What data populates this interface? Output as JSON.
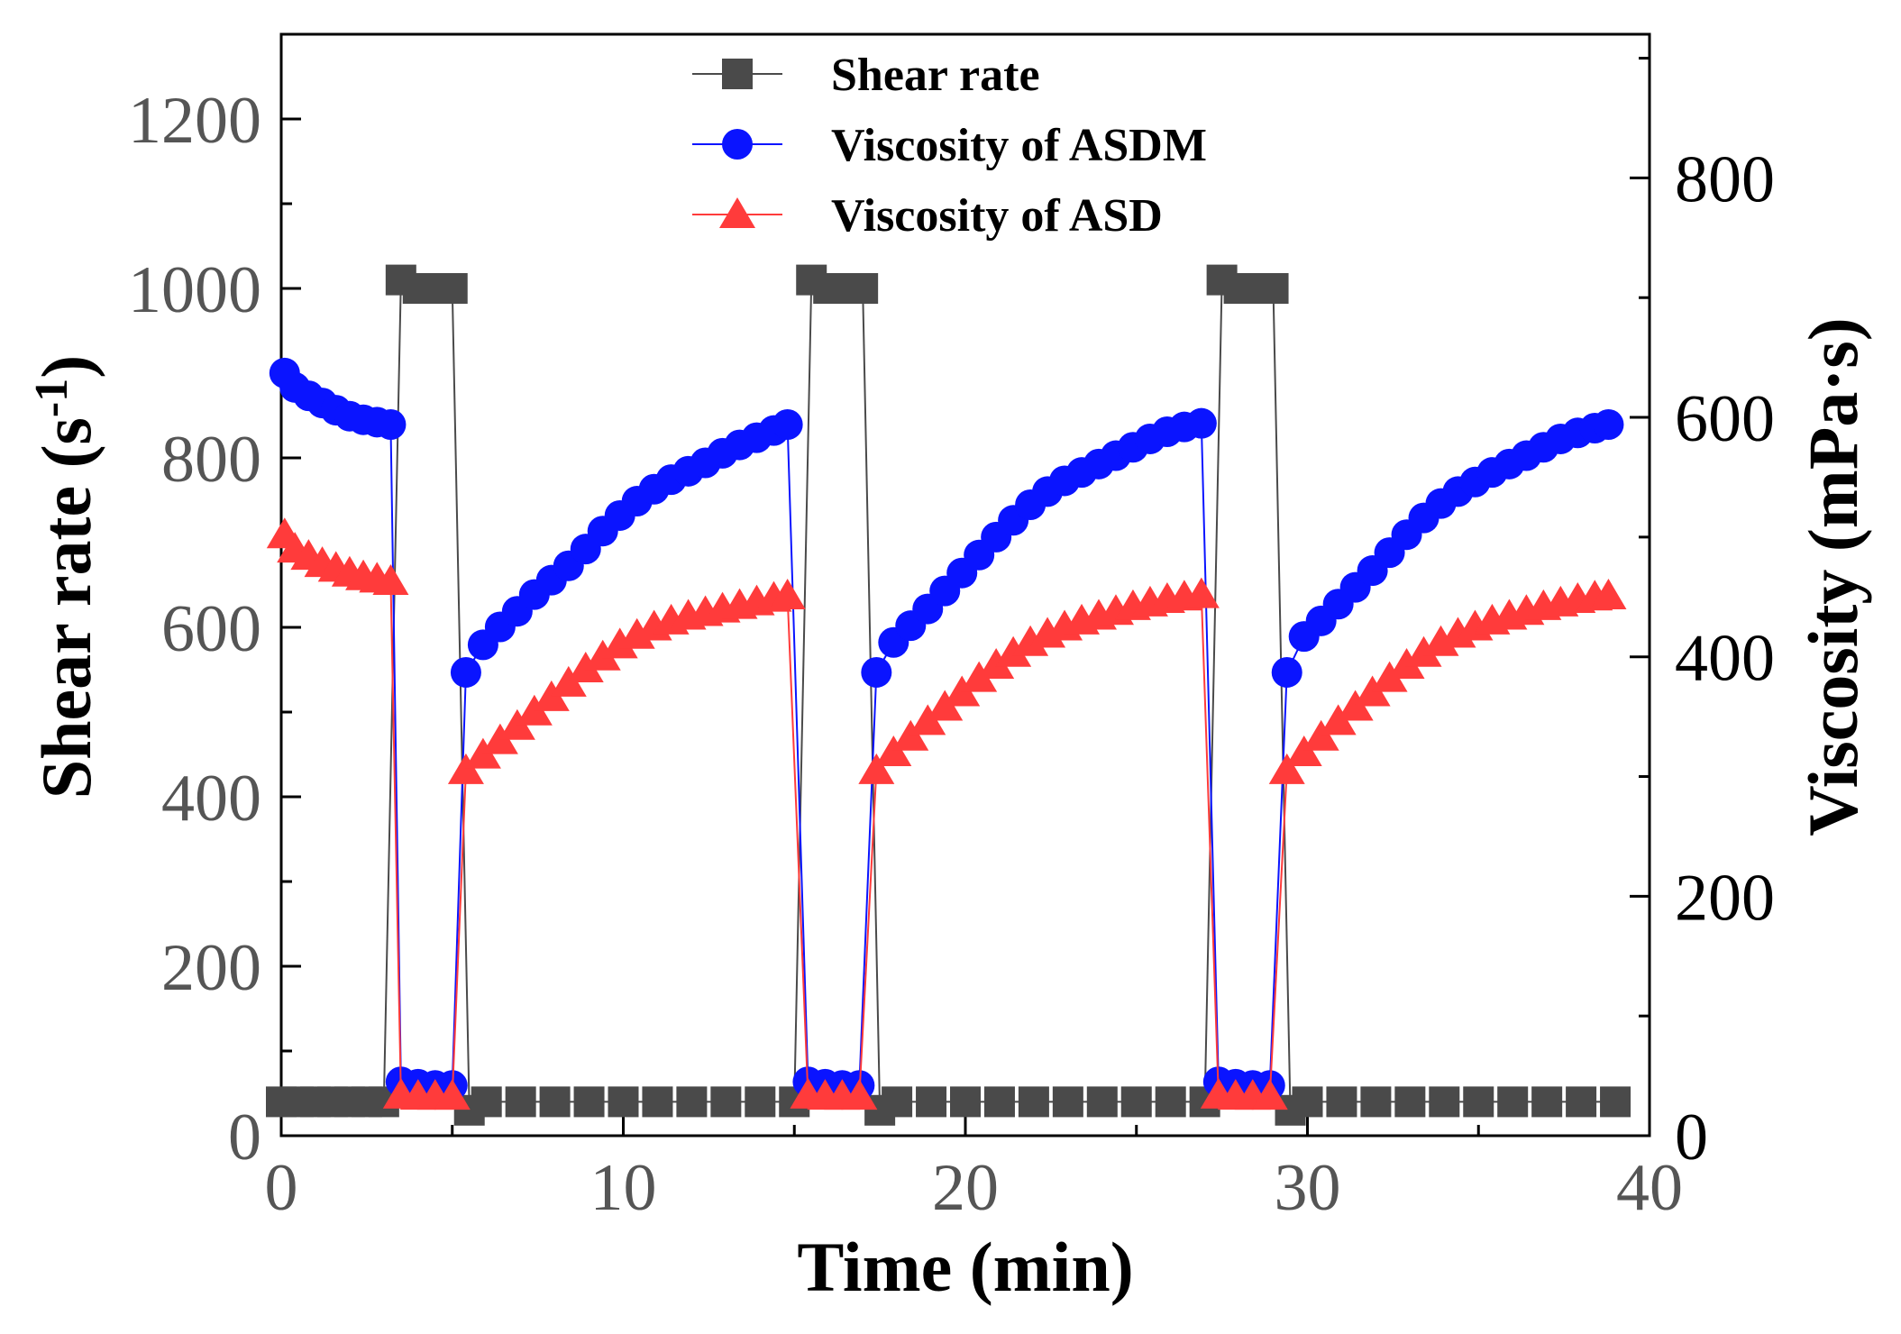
{
  "chart_data": {
    "type": "line",
    "title": "",
    "xlabel": "Time (min)",
    "ylabel_left_main": "Shear rate (s",
    "ylabel_left_sup": "-1",
    "ylabel_left_close": ")",
    "ylabel_right": "Viscosity (mPa·s)",
    "xlim": [
      0,
      40
    ],
    "ylim_left": [
      0,
      1300
    ],
    "ylim_right": [
      0,
      920
    ],
    "x_ticks": [
      "0",
      "10",
      "20",
      "30",
      "40"
    ],
    "y_left_ticks": [
      "0",
      "200",
      "400",
      "600",
      "800",
      "1000",
      "1200"
    ],
    "y_right_ticks": [
      "0",
      "200",
      "400",
      "600",
      "800"
    ],
    "legend_position": "top-center",
    "series": [
      {
        "name": "Shear rate",
        "axis": "left",
        "marker": "square",
        "color": "#4a4a4a",
        "points": [
          [
            0,
            40
          ],
          [
            0.5,
            40
          ],
          [
            1,
            40
          ],
          [
            1.5,
            40
          ],
          [
            2,
            40
          ],
          [
            2.5,
            40
          ],
          [
            3,
            40
          ],
          [
            3.5,
            1010
          ],
          [
            4,
            1000
          ],
          [
            4.5,
            1000
          ],
          [
            5,
            1000
          ],
          [
            5.5,
            30
          ],
          [
            6,
            40
          ],
          [
            7,
            40
          ],
          [
            8,
            40
          ],
          [
            9,
            40
          ],
          [
            10,
            40
          ],
          [
            11,
            40
          ],
          [
            12,
            40
          ],
          [
            13,
            40
          ],
          [
            14,
            40
          ],
          [
            15,
            40
          ],
          [
            15.5,
            1010
          ],
          [
            16,
            1000
          ],
          [
            16.5,
            1000
          ],
          [
            17,
            1000
          ],
          [
            17.5,
            30
          ],
          [
            18,
            40
          ],
          [
            19,
            40
          ],
          [
            20,
            40
          ],
          [
            21,
            40
          ],
          [
            22,
            40
          ],
          [
            23,
            40
          ],
          [
            24,
            40
          ],
          [
            25,
            40
          ],
          [
            26,
            40
          ],
          [
            27,
            40
          ],
          [
            27.5,
            1010
          ],
          [
            28,
            1000
          ],
          [
            28.5,
            1000
          ],
          [
            29,
            1000
          ],
          [
            29.5,
            30
          ],
          [
            30,
            40
          ],
          [
            31,
            40
          ],
          [
            32,
            40
          ],
          [
            33,
            40
          ],
          [
            34,
            40
          ],
          [
            35,
            40
          ],
          [
            36,
            40
          ],
          [
            37,
            40
          ],
          [
            38,
            40
          ],
          [
            39,
            40
          ]
        ]
      },
      {
        "name": "Viscosity of ASDM",
        "axis": "right",
        "marker": "circle",
        "color": "#0a14ff",
        "points": [
          [
            0.1,
            637
          ],
          [
            0.4,
            625
          ],
          [
            0.8,
            618
          ],
          [
            1.2,
            612
          ],
          [
            1.6,
            606
          ],
          [
            2,
            601
          ],
          [
            2.4,
            598
          ],
          [
            2.8,
            596
          ],
          [
            3.2,
            594
          ],
          [
            3.5,
            45
          ],
          [
            4,
            43
          ],
          [
            4.5,
            42
          ],
          [
            5,
            42
          ],
          [
            5.4,
            387
          ],
          [
            5.9,
            410
          ],
          [
            6.4,
            425
          ],
          [
            6.9,
            438
          ],
          [
            7.4,
            452
          ],
          [
            7.9,
            464
          ],
          [
            8.4,
            476
          ],
          [
            8.9,
            490
          ],
          [
            9.4,
            505
          ],
          [
            9.9,
            518
          ],
          [
            10.4,
            530
          ],
          [
            10.9,
            540
          ],
          [
            11.4,
            548
          ],
          [
            11.9,
            555
          ],
          [
            12.4,
            562
          ],
          [
            12.9,
            570
          ],
          [
            13.4,
            577
          ],
          [
            13.9,
            583
          ],
          [
            14.4,
            589
          ],
          [
            14.8,
            594
          ],
          [
            15.4,
            45
          ],
          [
            15.9,
            43
          ],
          [
            16.4,
            42
          ],
          [
            16.9,
            42
          ],
          [
            17.4,
            387
          ],
          [
            17.9,
            412
          ],
          [
            18.4,
            426
          ],
          [
            18.9,
            440
          ],
          [
            19.4,
            455
          ],
          [
            19.9,
            470
          ],
          [
            20.4,
            485
          ],
          [
            20.9,
            500
          ],
          [
            21.4,
            514
          ],
          [
            21.9,
            527
          ],
          [
            22.4,
            538
          ],
          [
            22.9,
            547
          ],
          [
            23.4,
            554
          ],
          [
            23.9,
            561
          ],
          [
            24.4,
            568
          ],
          [
            24.9,
            575
          ],
          [
            25.4,
            582
          ],
          [
            25.9,
            588
          ],
          [
            26.4,
            592
          ],
          [
            26.9,
            595
          ],
          [
            27.4,
            45
          ],
          [
            27.9,
            43
          ],
          [
            28.4,
            42
          ],
          [
            28.9,
            42
          ],
          [
            29.4,
            387
          ],
          [
            29.9,
            417
          ],
          [
            30.4,
            430
          ],
          [
            30.9,
            444
          ],
          [
            31.4,
            458
          ],
          [
            31.9,
            472
          ],
          [
            32.4,
            487
          ],
          [
            32.9,
            502
          ],
          [
            33.4,
            516
          ],
          [
            33.9,
            528
          ],
          [
            34.4,
            538
          ],
          [
            34.9,
            546
          ],
          [
            35.4,
            554
          ],
          [
            35.9,
            561
          ],
          [
            36.4,
            568
          ],
          [
            36.9,
            575
          ],
          [
            37.4,
            582
          ],
          [
            37.9,
            587
          ],
          [
            38.4,
            591
          ],
          [
            38.8,
            594
          ]
        ]
      },
      {
        "name": "Viscosity of ASD",
        "axis": "right",
        "marker": "triangle",
        "color": "#ff3b3b",
        "points": [
          [
            0.1,
            502
          ],
          [
            0.4,
            490
          ],
          [
            0.8,
            484
          ],
          [
            1.2,
            478
          ],
          [
            1.6,
            474
          ],
          [
            2,
            470
          ],
          [
            2.4,
            467
          ],
          [
            2.8,
            465
          ],
          [
            3.2,
            463
          ],
          [
            3.5,
            34
          ],
          [
            4,
            33
          ],
          [
            4.5,
            33
          ],
          [
            5,
            33
          ],
          [
            5.4,
            305
          ],
          [
            5.9,
            318
          ],
          [
            6.4,
            330
          ],
          [
            6.9,
            342
          ],
          [
            7.4,
            354
          ],
          [
            7.9,
            366
          ],
          [
            8.4,
            378
          ],
          [
            8.9,
            390
          ],
          [
            9.4,
            400
          ],
          [
            9.9,
            410
          ],
          [
            10.4,
            418
          ],
          [
            10.9,
            425
          ],
          [
            11.4,
            430
          ],
          [
            11.9,
            434
          ],
          [
            12.4,
            437
          ],
          [
            12.9,
            440
          ],
          [
            13.4,
            443
          ],
          [
            13.9,
            446
          ],
          [
            14.4,
            449
          ],
          [
            14.8,
            451
          ],
          [
            15.4,
            34
          ],
          [
            15.9,
            33
          ],
          [
            16.4,
            33
          ],
          [
            16.9,
            33
          ],
          [
            17.4,
            305
          ],
          [
            17.9,
            320
          ],
          [
            18.4,
            333
          ],
          [
            18.9,
            346
          ],
          [
            19.4,
            358
          ],
          [
            19.9,
            370
          ],
          [
            20.4,
            382
          ],
          [
            20.9,
            393
          ],
          [
            21.4,
            403
          ],
          [
            21.9,
            412
          ],
          [
            22.4,
            419
          ],
          [
            22.9,
            425
          ],
          [
            23.4,
            430
          ],
          [
            23.9,
            434
          ],
          [
            24.4,
            438
          ],
          [
            24.9,
            442
          ],
          [
            25.4,
            445
          ],
          [
            25.9,
            448
          ],
          [
            26.4,
            450
          ],
          [
            26.9,
            452
          ],
          [
            27.4,
            34
          ],
          [
            27.9,
            33
          ],
          [
            28.4,
            33
          ],
          [
            28.9,
            33
          ],
          [
            29.4,
            305
          ],
          [
            29.9,
            320
          ],
          [
            30.4,
            333
          ],
          [
            30.9,
            346
          ],
          [
            31.4,
            358
          ],
          [
            31.9,
            370
          ],
          [
            32.4,
            382
          ],
          [
            32.9,
            393
          ],
          [
            33.4,
            403
          ],
          [
            33.9,
            412
          ],
          [
            34.4,
            419
          ],
          [
            34.9,
            425
          ],
          [
            35.4,
            430
          ],
          [
            35.9,
            434
          ],
          [
            36.4,
            438
          ],
          [
            36.9,
            442
          ],
          [
            37.4,
            445
          ],
          [
            37.9,
            448
          ],
          [
            38.4,
            450
          ],
          [
            38.8,
            451
          ]
        ]
      }
    ]
  }
}
